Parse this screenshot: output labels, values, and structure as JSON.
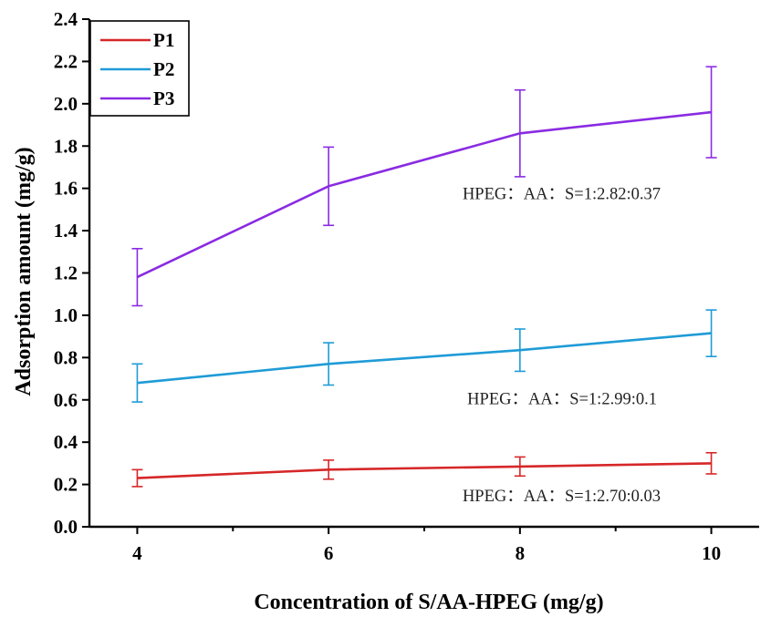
{
  "chart_data": {
    "type": "line",
    "xlabel": "Concentration of S/AA-HPEG (mg/g)",
    "ylabel": "Adsorption amount (mg/g)",
    "xlim": [
      3.5,
      10.5
    ],
    "ylim": [
      0,
      2.4
    ],
    "xticks": [
      "4",
      "6",
      "8",
      "10"
    ],
    "yticks": [
      "0.0",
      "0.2",
      "0.4",
      "0.6",
      "0.8",
      "1.0",
      "1.2",
      "1.4",
      "1.6",
      "1.8",
      "2.0",
      "2.2",
      "2.4"
    ],
    "x": [
      4,
      6,
      8,
      10
    ],
    "grid": false,
    "legend_position": "top-left",
    "series": [
      {
        "name": "P1",
        "color": "#d62728",
        "values": [
          0.23,
          0.27,
          0.285,
          0.3
        ],
        "errors": [
          0.04,
          0.045,
          0.045,
          0.05
        ]
      },
      {
        "name": "P2",
        "color": "#1f9bd7",
        "values": [
          0.68,
          0.77,
          0.835,
          0.915
        ],
        "errors": [
          0.09,
          0.1,
          0.1,
          0.11
        ]
      },
      {
        "name": "P3",
        "color": "#8a2be2",
        "values": [
          1.18,
          1.61,
          1.86,
          1.96
        ],
        "errors": [
          0.135,
          0.185,
          0.205,
          0.215
        ]
      }
    ],
    "annotations": [
      {
        "text": "HPEG：AA：S=1:2.82:0.37",
        "x": 7.4,
        "y": 1.55
      },
      {
        "text": "HPEG：AA：S=1:2.99:0.1",
        "x": 7.45,
        "y": 0.58
      },
      {
        "text": "HPEG：AA：S=1:2.70:0.03",
        "x": 7.4,
        "y": 0.12
      }
    ]
  }
}
